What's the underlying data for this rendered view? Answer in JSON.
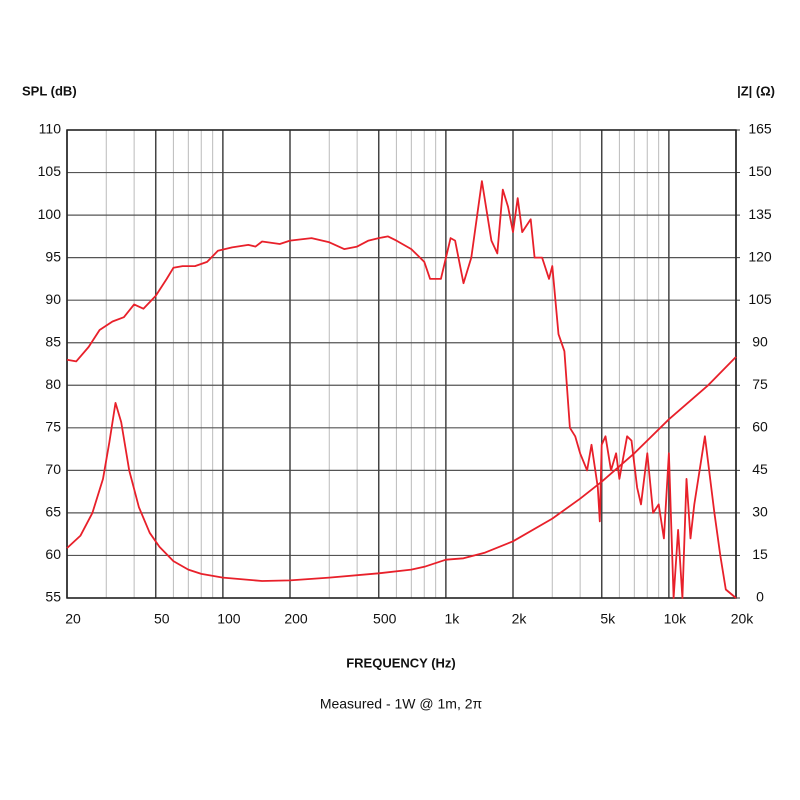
{
  "chart_data": {
    "type": "line",
    "y_label": "SPL (dB)",
    "y2_label": "|Z| (Ω)",
    "x_label": "FREQUENCY (Hz)",
    "subtitle": "Measured - 1W @ 1m, 2π",
    "xscale": "log",
    "grid": true,
    "xlim": [
      20,
      20000
    ],
    "xticks": [
      20,
      50,
      100,
      200,
      500,
      {
        "value": 1000,
        "label": "1k"
      },
      {
        "value": 2000,
        "label": "2k"
      },
      {
        "value": 5000,
        "label": "5k"
      },
      {
        "value": 10000,
        "label": "10k"
      },
      {
        "value": 20000,
        "label": "20k"
      }
    ],
    "minor_xticks": [
      30,
      40,
      60,
      70,
      80,
      90,
      300,
      400,
      600,
      700,
      800,
      900,
      3000,
      4000,
      6000,
      7000,
      8000,
      9000
    ],
    "ylim": [
      55,
      110
    ],
    "yticks": [
      55,
      60,
      65,
      70,
      75,
      80,
      85,
      90,
      95,
      100,
      105,
      110
    ],
    "y2lim": [
      0,
      165
    ],
    "y2ticks": [
      0,
      15,
      30,
      45,
      60,
      75,
      90,
      105,
      120,
      135,
      150,
      165
    ],
    "series": [
      {
        "color": "#e8202a",
        "x": [
          20,
          22,
          25,
          28,
          32,
          36,
          40,
          44,
          50,
          56,
          60,
          66,
          75,
          85,
          95,
          110,
          130,
          140,
          150,
          180,
          200,
          250,
          300,
          350,
          400,
          450,
          500,
          550,
          600,
          700,
          800,
          850,
          950,
          1050,
          1100,
          1200,
          1300,
          1450,
          1600,
          1700,
          1800,
          1900,
          2000,
          2100,
          2200,
          2400,
          2500,
          2700,
          2900,
          3000,
          3200,
          3400,
          3600,
          3800,
          4000,
          4300,
          4500,
          4800,
          4900,
          5000,
          5200,
          5500,
          5800,
          6000,
          6500,
          6800,
          7200,
          7500,
          8000,
          8500,
          9000,
          9500,
          10000,
          10500,
          11000,
          11500,
          12000,
          12500,
          13000,
          14500,
          16000,
          17000,
          18000,
          20000
        ],
        "values": [
          83,
          82.8,
          84.5,
          86.5,
          87.5,
          88,
          89.5,
          89,
          90.5,
          92.5,
          93.8,
          94,
          94,
          94.5,
          95.8,
          96.2,
          96.5,
          96.3,
          96.9,
          96.6,
          97,
          97.3,
          96.8,
          96,
          96.3,
          97,
          97.3,
          97.5,
          97,
          96,
          94.5,
          92.5,
          92.5,
          97.3,
          97,
          92,
          95,
          104,
          97,
          95.5,
          103,
          101,
          98,
          102,
          98,
          99.5,
          95,
          95,
          92.5,
          94,
          86,
          84,
          75,
          74,
          72,
          70,
          73,
          68,
          64,
          73,
          74,
          70,
          72,
          69,
          74,
          73.5,
          68,
          66,
          72,
          65,
          66,
          62,
          72,
          55,
          63,
          55,
          69,
          62,
          66,
          74,
          65,
          60,
          56,
          55
        ]
      },
      {
        "color": "#e8202a",
        "axis": "y2",
        "x": [
          20,
          23,
          26,
          29,
          31,
          33,
          35,
          38,
          42,
          47,
          52,
          60,
          70,
          80,
          100,
          150,
          200,
          300,
          500,
          700,
          800,
          1000,
          1200,
          1500,
          2000,
          3000,
          4000,
          5000,
          7000,
          10000,
          15000,
          20000
        ],
        "values": [
          17.6,
          22,
          30,
          42,
          55,
          68.8,
          62,
          45,
          32,
          23,
          18,
          13,
          10,
          8.5,
          7.2,
          6,
          6.2,
          7.2,
          8.7,
          10,
          11,
          13.5,
          14,
          16,
          20,
          28,
          35,
          41,
          51,
          63,
          75,
          85
        ]
      }
    ]
  }
}
